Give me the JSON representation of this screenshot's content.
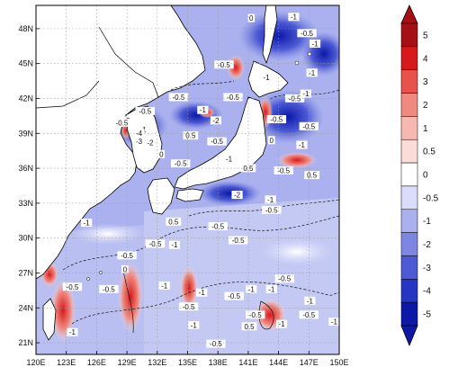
{
  "map": {
    "lon_ticks": [
      "120E",
      "123E",
      "126E",
      "129E",
      "132E",
      "135E",
      "138E",
      "141E",
      "144E",
      "147E",
      "150E"
    ],
    "lat_ticks": [
      "48N",
      "45N",
      "42N",
      "39N",
      "36N",
      "33N",
      "30N",
      "27N",
      "24N",
      "21N"
    ],
    "lon_range": [
      120,
      150
    ],
    "lat_range": [
      20,
      50
    ],
    "grid": "dashed",
    "fill_palette": "blue-white-red diverging"
  },
  "colorbar": {
    "labels": [
      "5",
      "4",
      "3",
      "2",
      "1",
      "0.5",
      "0",
      "-0.5",
      "-1",
      "-2",
      "-3",
      "-4",
      "-5"
    ],
    "colors": [
      "#a50f15",
      "#d7191c",
      "#e8524a",
      "#f08a80",
      "#f6b8b0",
      "#fcdcd8",
      "#ffffff",
      "#d9dcfa",
      "#aab1ee",
      "#7d87e2",
      "#4d5ad4",
      "#2535c4",
      "#0b18a8"
    ],
    "extend": "both"
  },
  "contour_labels": [
    {
      "text": "0",
      "lon": 141.3,
      "lat": 48.8
    },
    {
      "text": "-1",
      "lon": 145.5,
      "lat": 48.9
    },
    {
      "text": "-0.5",
      "lon": 146.8,
      "lat": 47.5
    },
    {
      "text": "-1",
      "lon": 147.6,
      "lat": 46.6
    },
    {
      "text": "-0.5",
      "lon": 138.6,
      "lat": 44.8
    },
    {
      "text": "-1",
      "lon": 142.8,
      "lat": 43.7
    },
    {
      "text": "-0.5",
      "lon": 139.5,
      "lat": 42.0
    },
    {
      "text": "-0.5",
      "lon": 134.1,
      "lat": 42.0
    },
    {
      "text": "-0.5",
      "lon": 130.8,
      "lat": 40.8
    },
    {
      "text": "-3",
      "lon": 129.0,
      "lat": 40.0
    },
    {
      "text": "-0.5",
      "lon": 128.5,
      "lat": 39.8
    },
    {
      "text": "-1",
      "lon": 130.6,
      "lat": 39.2
    },
    {
      "text": "-4",
      "lon": 130.2,
      "lat": 38.9
    },
    {
      "text": "-3",
      "lon": 130.2,
      "lat": 38.2
    },
    {
      "text": "-2",
      "lon": 131.3,
      "lat": 38.1
    },
    {
      "text": "0",
      "lon": 132.4,
      "lat": 37.1
    },
    {
      "text": "-0.5",
      "lon": 134.3,
      "lat": 36.3
    },
    {
      "text": "-1",
      "lon": 139.1,
      "lat": 36.7
    },
    {
      "text": "-0.5",
      "lon": 143.8,
      "lat": 40.1
    },
    {
      "text": "-0.5",
      "lon": 147.0,
      "lat": 39.5
    },
    {
      "text": "-1",
      "lon": 146.3,
      "lat": 37.9
    },
    {
      "text": "0",
      "lon": 143.3,
      "lat": 38.3
    },
    {
      "text": "-0.5",
      "lon": 144.5,
      "lat": 35.7
    },
    {
      "text": "0.5",
      "lon": 147.3,
      "lat": 35.3
    },
    {
      "text": "-2",
      "lon": 139.9,
      "lat": 33.6
    },
    {
      "text": "-1",
      "lon": 143.2,
      "lat": 33.2
    },
    {
      "text": "-0.5",
      "lon": 143.3,
      "lat": 32.3
    },
    {
      "text": "-0.5",
      "lon": 138.0,
      "lat": 30.9
    },
    {
      "text": "0.5",
      "lon": 133.6,
      "lat": 31.3
    },
    {
      "text": "-0.5",
      "lon": 131.8,
      "lat": 29.4
    },
    {
      "text": "-1",
      "lon": 133.7,
      "lat": 29.3
    },
    {
      "text": "-0.5",
      "lon": 140.0,
      "lat": 29.7
    },
    {
      "text": "-1",
      "lon": 125.0,
      "lat": 31.2
    },
    {
      "text": "-0.5",
      "lon": 129.0,
      "lat": 28.4
    },
    {
      "text": "0",
      "lon": 128.8,
      "lat": 27.2
    },
    {
      "text": "-0.5",
      "lon": 127.2,
      "lat": 25.5
    },
    {
      "text": "-0.5",
      "lon": 123.6,
      "lat": 25.7
    },
    {
      "text": "-1",
      "lon": 132.7,
      "lat": 25.8
    },
    {
      "text": "-1",
      "lon": 136.4,
      "lat": 25.2
    },
    {
      "text": "-0.5",
      "lon": 139.6,
      "lat": 24.9
    },
    {
      "text": "-0.5",
      "lon": 135.1,
      "lat": 24.0
    },
    {
      "text": "-1",
      "lon": 141.3,
      "lat": 25.5
    },
    {
      "text": "-0.5",
      "lon": 144.6,
      "lat": 26.4
    },
    {
      "text": "-1",
      "lon": 143.3,
      "lat": 25.5
    },
    {
      "text": "0.5",
      "lon": 141.1,
      "lat": 22.3
    },
    {
      "text": "-0.5",
      "lon": 141.7,
      "lat": 23.3
    },
    {
      "text": "-1",
      "lon": 144.3,
      "lat": 22.5
    },
    {
      "text": "-0.5",
      "lon": 147.0,
      "lat": 23.3
    },
    {
      "text": "-1",
      "lon": 147.1,
      "lat": 24.5
    },
    {
      "text": "-1",
      "lon": 135.6,
      "lat": 22.4
    },
    {
      "text": "-0.5",
      "lon": 137.8,
      "lat": 20.8
    },
    {
      "text": "-1",
      "lon": 123.6,
      "lat": 21.8
    },
    {
      "text": "0.5",
      "lon": 135.3,
      "lat": 38.7
    },
    {
      "text": "-0.5",
      "lon": 137.9,
      "lat": 38.2
    },
    {
      "text": "-2",
      "lon": 137.8,
      "lat": 40.0
    },
    {
      "text": "-1",
      "lon": 136.5,
      "lat": 40.9
    },
    {
      "text": "0.5",
      "lon": 141.0,
      "lat": 35.9
    },
    {
      "text": "-0.5",
      "lon": 145.6,
      "lat": 41.9
    },
    {
      "text": "-1",
      "lon": 146.7,
      "lat": 42.3
    },
    {
      "text": "-1",
      "lon": 147.3,
      "lat": 44.1
    },
    {
      "text": "-1",
      "lon": 149.5,
      "lat": 22.7
    }
  ]
}
